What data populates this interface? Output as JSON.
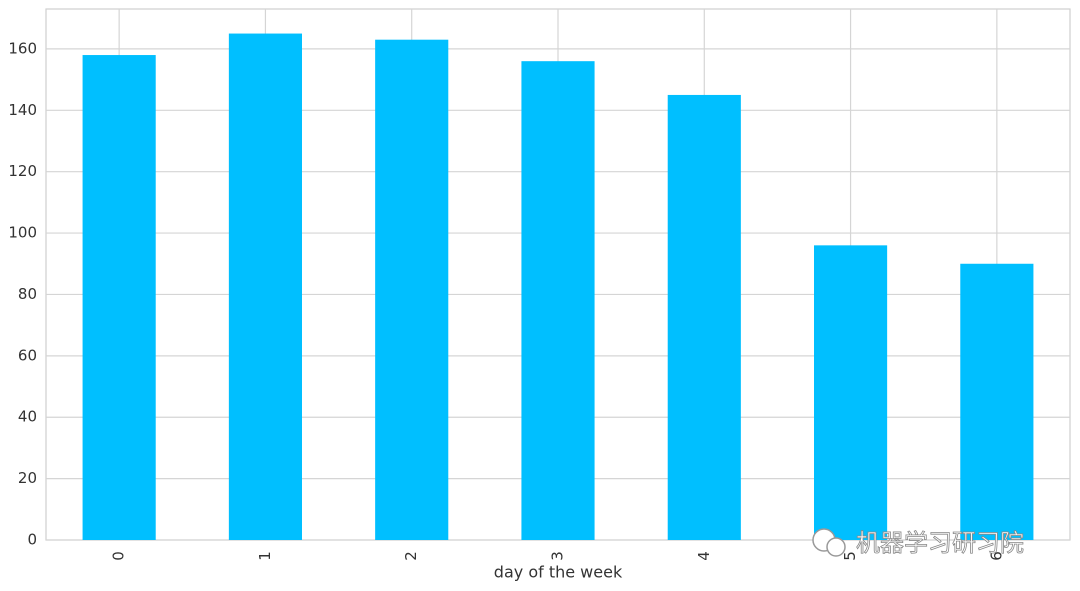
{
  "chart_data": {
    "type": "bar",
    "x_label": "day of the week",
    "categories": [
      "0",
      "1",
      "2",
      "3",
      "4",
      "5",
      "6"
    ],
    "values": [
      158,
      165,
      163,
      156,
      145,
      96,
      90
    ],
    "color": "#00bfff",
    "ylim": [
      0,
      173
    ],
    "yticks": [
      0,
      20,
      40,
      60,
      80,
      100,
      120,
      140,
      160
    ],
    "grid": true,
    "watermark": "机器学习研习院"
  }
}
